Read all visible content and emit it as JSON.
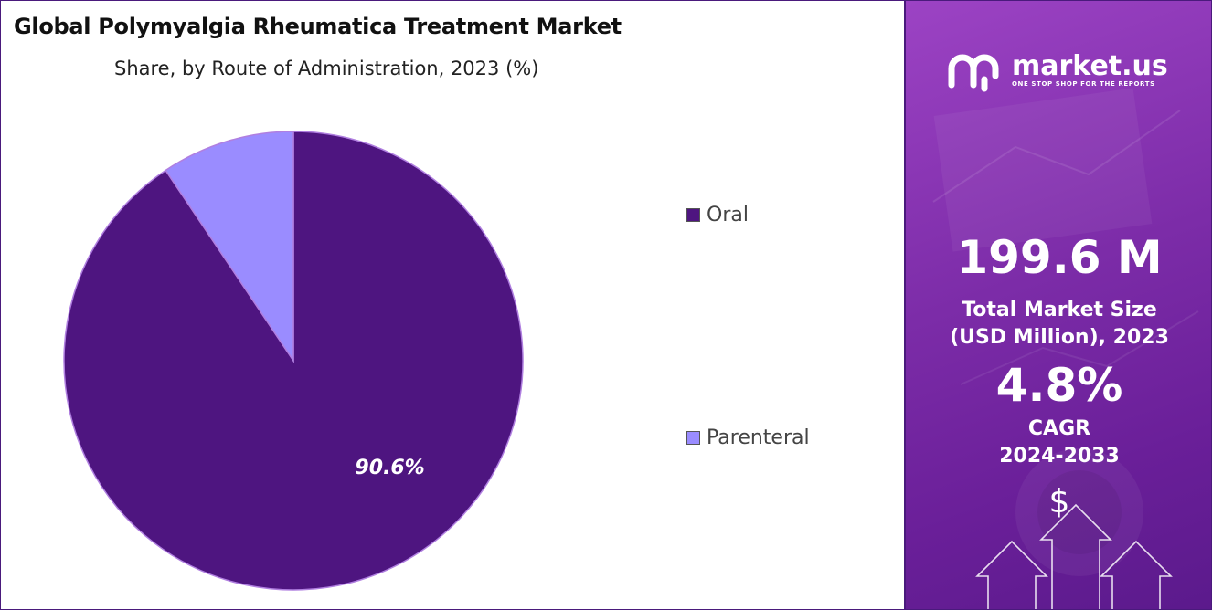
{
  "header": {
    "title": "Global Polymyalgia Rheumatica Treatment Market",
    "subtitle": "Share, by Route of Administration, 2023 (%)"
  },
  "chart_data": {
    "type": "pie",
    "title": "Global Polymyalgia Rheumatica Treatment Market",
    "subtitle": "Share, by Route of Administration, 2023 (%)",
    "categories": [
      "Oral",
      "Parenteral"
    ],
    "values": [
      90.6,
      9.4
    ],
    "data_labels": [
      "90.6%",
      ""
    ],
    "colors": [
      "#4e1580",
      "#9a8cff"
    ],
    "legend_position": "right"
  },
  "legend": {
    "items": [
      {
        "label": "Oral",
        "color": "#4e1580"
      },
      {
        "label": "Parenteral",
        "color": "#9a8cff"
      }
    ]
  },
  "sidebar": {
    "brand": "market.us",
    "tagline": "ONE STOP SHOP FOR THE REPORTS",
    "market_size_value": "199.6 M",
    "market_size_label_1": "Total Market Size",
    "market_size_label_2": "(USD Million), 2023",
    "cagr_value": "4.8%",
    "cagr_label": "CAGR",
    "cagr_period": "2024-2033",
    "currency_symbol": "$",
    "accent_color": "#7c2ca8"
  }
}
